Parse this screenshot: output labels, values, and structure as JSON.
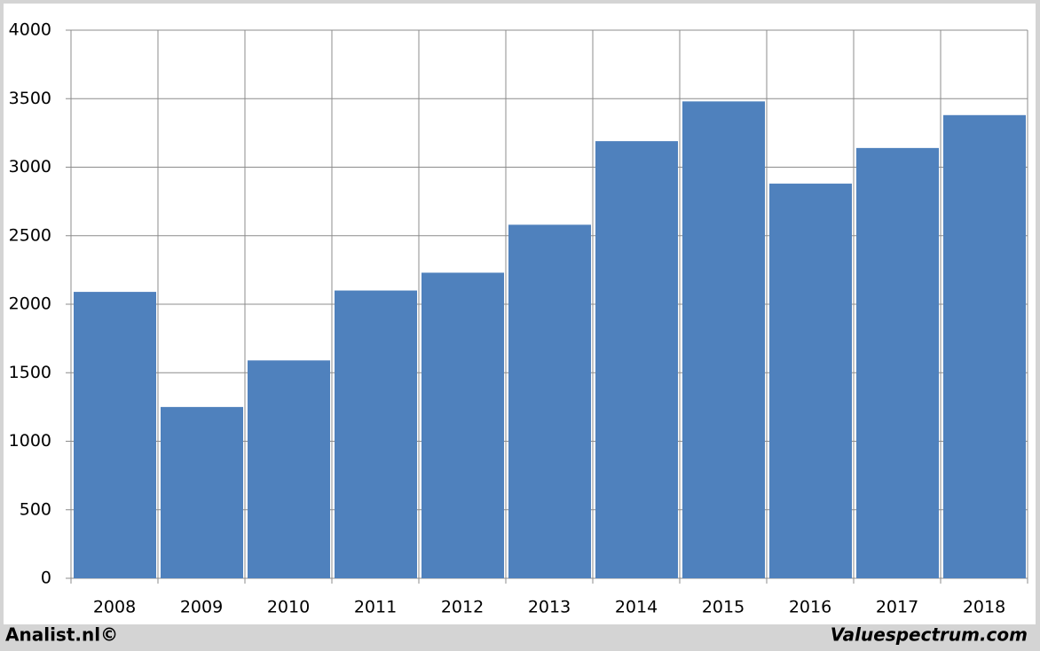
{
  "chart_data": {
    "type": "bar",
    "categories": [
      "2008",
      "2009",
      "2010",
      "2011",
      "2012",
      "2013",
      "2014",
      "2015",
      "2016",
      "2017",
      "2018"
    ],
    "values": [
      2090,
      1250,
      1590,
      2100,
      2230,
      2580,
      3190,
      3480,
      2880,
      3140,
      3380
    ],
    "color": "#4f81bd",
    "ylim": [
      0,
      4000
    ],
    "yticks": [
      0,
      500,
      1000,
      1500,
      2000,
      2500,
      3000,
      3500,
      4000
    ],
    "grid": true,
    "annotations": [
      "Analist.nl©",
      "Valuespectrum.com"
    ]
  }
}
